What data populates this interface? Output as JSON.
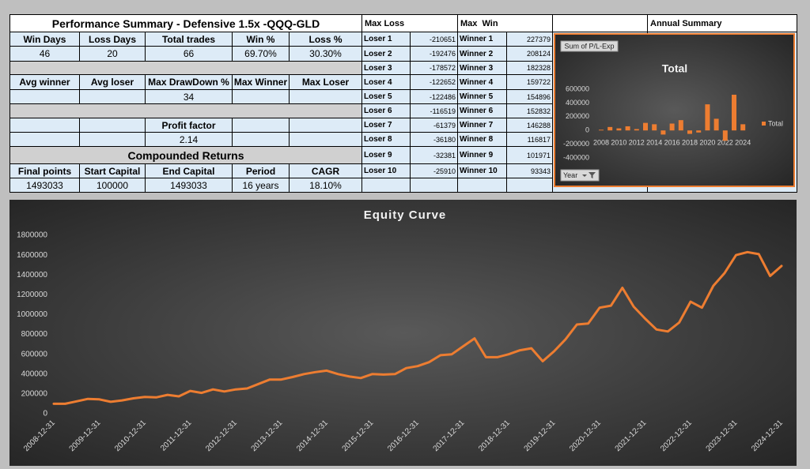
{
  "summary": {
    "title": "Performance Summary - Defensive 1.5x -QQQ-GLD",
    "win_loss": {
      "headers": [
        "Win Days",
        "Loss Days",
        "Total trades",
        "Win %",
        "Loss %"
      ],
      "values": [
        "46",
        "20",
        "66",
        "69.70%",
        "30.30%"
      ]
    },
    "stats": {
      "headers": [
        "Avg winner",
        "Avg loser",
        "Max DrawDown %",
        "Max Winner",
        "Max Loser"
      ],
      "max_drawdown": "34"
    },
    "profit_factor": {
      "label": "Profit factor",
      "value": "2.14"
    },
    "compounded": {
      "title": "Compounded Returns",
      "headers": [
        "Final points",
        "Start Capital",
        "End Capital",
        "Period",
        "CAGR"
      ],
      "values": [
        "1493033",
        "100000",
        "1493033",
        "16 years",
        "18.10%"
      ]
    }
  },
  "max_loss": {
    "header": "Max Loss",
    "rows": [
      {
        "label": "Loser 1",
        "value": -210651
      },
      {
        "label": "Loser 2",
        "value": -192476
      },
      {
        "label": "Loser 3",
        "value": -178572
      },
      {
        "label": "Loser 4",
        "value": -122652
      },
      {
        "label": "Loser 5",
        "value": -122486
      },
      {
        "label": "Loser 6",
        "value": -116519
      },
      {
        "label": "Loser 7",
        "value": -61379
      },
      {
        "label": "Loser 8",
        "value": -36180
      },
      {
        "label": "Loser 9",
        "value": -32381
      },
      {
        "label": "Loser 10",
        "value": -25910
      }
    ]
  },
  "max_win": {
    "header": "Max  Win",
    "rows": [
      {
        "label": "Winner 1",
        "value": 227379
      },
      {
        "label": "Winner 2",
        "value": 208124
      },
      {
        "label": "Winner 3",
        "value": 182328
      },
      {
        "label": "Winner 4",
        "value": 159722
      },
      {
        "label": "Winner 5",
        "value": 154896
      },
      {
        "label": "Winner 6",
        "value": 152832
      },
      {
        "label": "Winner 7",
        "value": 146288
      },
      {
        "label": "Winner 8",
        "value": 116817
      },
      {
        "label": "Winner 9",
        "value": 101971
      },
      {
        "label": "Winner 10",
        "value": 93343
      }
    ]
  },
  "annual_summary": {
    "header": "Annual Summary"
  },
  "chart_data": [
    {
      "type": "bar",
      "button": "Sum of P/L-Exp",
      "title": "Total",
      "filter": "Year",
      "categories": [
        "2008",
        null,
        "2010",
        null,
        "2012",
        null,
        "2014",
        null,
        "2016",
        null,
        "2018",
        null,
        "2020",
        null,
        "2022",
        null,
        "2024"
      ],
      "series": [
        {
          "name": "Total",
          "color": "#ed7d31",
          "values": [
            10000,
            50000,
            30000,
            60000,
            20000,
            110000,
            90000,
            -60000,
            100000,
            150000,
            -50000,
            -30000,
            380000,
            170000,
            -150000,
            520000,
            90000
          ]
        }
      ],
      "ylim": [
        -400000,
        600000
      ],
      "yticks": [
        -400000,
        -200000,
        0,
        200000,
        400000,
        600000
      ],
      "legend": "right"
    },
    {
      "type": "line",
      "title": "Equity Curve",
      "categories": [
        "2008-12-31",
        null,
        null,
        null,
        "2009-12-31",
        null,
        null,
        null,
        "2010-12-31",
        null,
        null,
        null,
        "2011-12-31",
        null,
        null,
        null,
        "2012-12-31",
        null,
        null,
        null,
        "2013-12-31",
        null,
        null,
        null,
        "2014-12-31",
        null,
        null,
        null,
        "2015-12-31",
        null,
        null,
        null,
        "2016-12-31",
        null,
        null,
        null,
        "2017-12-31",
        null,
        null,
        null,
        "2018-12-31",
        null,
        null,
        null,
        "2019-12-31",
        null,
        null,
        null,
        "2020-12-31",
        null,
        null,
        null,
        "2021-12-31",
        null,
        null,
        null,
        "2022-12-31",
        null,
        null,
        null,
        "2023-12-31",
        null,
        null,
        null,
        "2024-12-31"
      ],
      "series": [
        {
          "color": "#ed7d31",
          "values": [
            100000,
            100000,
            125000,
            150000,
            145000,
            120000,
            135000,
            155000,
            170000,
            165000,
            190000,
            175000,
            230000,
            210000,
            245000,
            225000,
            245000,
            255000,
            300000,
            345000,
            345000,
            370000,
            400000,
            420000,
            435000,
            400000,
            375000,
            360000,
            400000,
            395000,
            400000,
            460000,
            480000,
            520000,
            590000,
            600000,
            680000,
            760000,
            570000,
            570000,
            600000,
            640000,
            660000,
            530000,
            630000,
            750000,
            900000,
            910000,
            1070000,
            1090000,
            1270000,
            1080000,
            960000,
            850000,
            830000,
            920000,
            1130000,
            1070000,
            1290000,
            1420000,
            1600000,
            1630000,
            1610000,
            1390000,
            1490000
          ]
        }
      ],
      "ylim": [
        0,
        1800000
      ],
      "yticks": [
        0,
        200000,
        400000,
        600000,
        800000,
        1000000,
        1200000,
        1400000,
        1600000,
        1800000
      ]
    }
  ]
}
